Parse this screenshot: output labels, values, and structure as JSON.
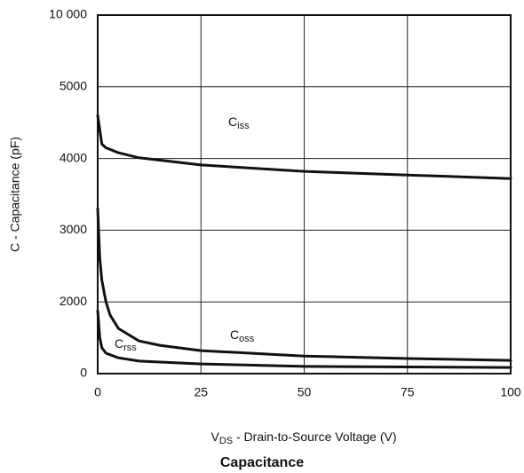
{
  "chart_data": {
    "type": "line",
    "title": "Capacitance",
    "x_label": {
      "main": "V",
      "sub": "DS",
      "rest": " - Drain-to-Source Voltage (V)"
    },
    "y_label": "C - Capacitance (pF)",
    "xlim": [
      0,
      100
    ],
    "xticks": [
      0,
      25,
      50,
      75,
      100
    ],
    "ylim": [
      0,
      10000
    ],
    "yticks": [
      0,
      2000,
      3000,
      4000,
      5000,
      {
        "value": 10000,
        "label": "10 000"
      }
    ],
    "grid": true,
    "series": [
      {
        "label": {
          "main": "C",
          "sub": "iss"
        },
        "color": "#111111",
        "x": [
          0,
          1,
          2,
          5,
          10,
          25,
          50,
          75,
          100
        ],
        "values": [
          4600,
          4200,
          4150,
          4080,
          4010,
          3910,
          3820,
          3770,
          3720
        ]
      },
      {
        "label": {
          "main": "C",
          "sub": "oss"
        },
        "color": "#111111",
        "x": [
          0,
          0.5,
          1,
          2,
          3,
          5,
          10,
          15,
          25,
          50,
          75,
          100
        ],
        "values": [
          3300,
          2620,
          2300,
          2000,
          1630,
          1260,
          910,
          790,
          640,
          490,
          420,
          370
        ]
      },
      {
        "label": {
          "main": "C",
          "sub": "rss"
        },
        "color": "#111111",
        "x": [
          0,
          0.5,
          1,
          2,
          5,
          10,
          25,
          50,
          100
        ],
        "values": [
          1750,
          1010,
          720,
          570,
          440,
          350,
          270,
          200,
          170
        ]
      }
    ]
  }
}
